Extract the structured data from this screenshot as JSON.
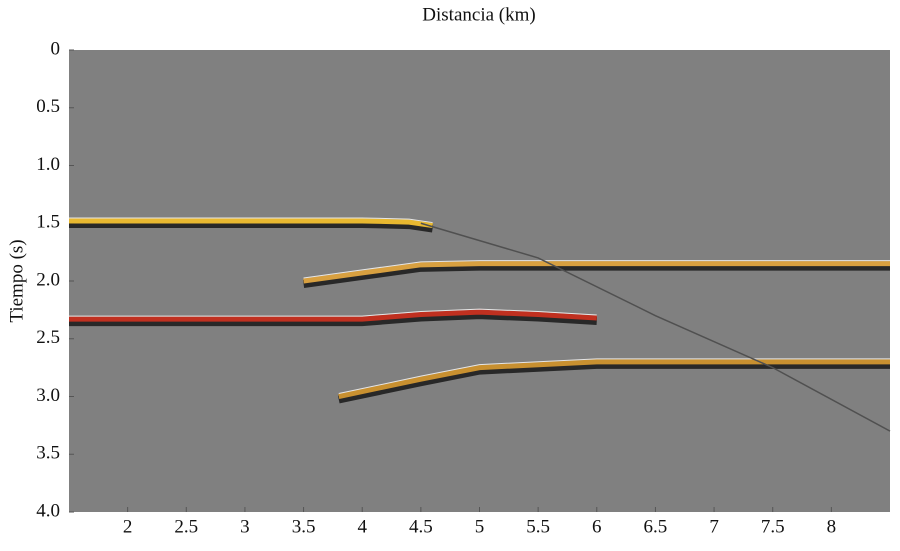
{
  "chart_data": {
    "type": "seismic",
    "title": "Distancia (km)",
    "y_label": "Tiempo (s)",
    "xlim": [
      1.5,
      8.5
    ],
    "ylim": [
      4,
      0
    ],
    "xticks": [
      2,
      2.5,
      3,
      3.5,
      4,
      4.5,
      5,
      5.5,
      6,
      6.5,
      7,
      7.5,
      8
    ],
    "yticks": [
      0,
      0.5,
      {
        "value": 1,
        "label": "1.0"
      },
      1.5,
      {
        "value": 2,
        "label": "2.0"
      },
      2.5,
      {
        "value": 3,
        "label": "3.0"
      },
      3.5,
      {
        "value": 4,
        "label": "4.0"
      }
    ],
    "background": "#808080",
    "series": [
      {
        "color": "#e8b830",
        "x": [
          1.5,
          4.0,
          4.4,
          4.6
        ],
        "values": [
          1.48,
          1.48,
          1.49,
          1.52
        ]
      },
      {
        "color": "#d8a040",
        "x": [
          3.5,
          4.0,
          4.5,
          5.0,
          8.5
        ],
        "values": [
          2.0,
          1.93,
          1.86,
          1.85,
          1.85
        ]
      },
      {
        "color": "#c03020",
        "x": [
          1.5,
          4.0,
          4.5,
          5.0,
          5.5,
          6.0
        ],
        "values": [
          2.33,
          2.33,
          2.29,
          2.27,
          2.29,
          2.32
        ]
      },
      {
        "color": "#c89030",
        "x": [
          3.8,
          4.5,
          5.0,
          6.0,
          8.5
        ],
        "values": [
          3.0,
          2.85,
          2.75,
          2.7,
          2.7
        ]
      },
      {
        "color": "#505050",
        "x": [
          4.5,
          5.5,
          6.5,
          7.5,
          8.5
        ],
        "values": [
          1.5,
          1.8,
          2.3,
          2.75,
          3.3
        ]
      }
    ]
  }
}
